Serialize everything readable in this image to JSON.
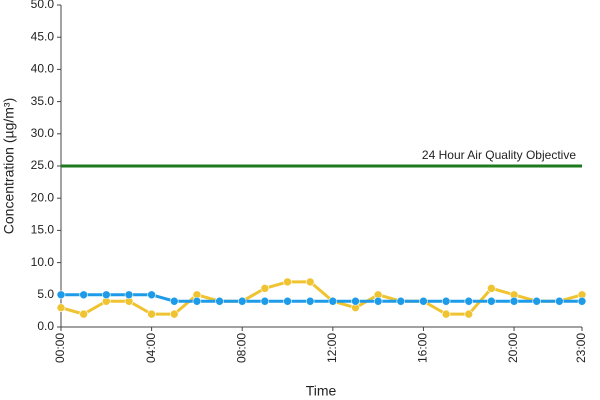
{
  "chart_data": {
    "type": "line",
    "x_label": "Time",
    "y_label": "Concentration (µg/m³)",
    "categories": [
      "00:00",
      null,
      null,
      null,
      "04:00",
      null,
      null,
      null,
      "08:00",
      null,
      null,
      null,
      "12:00",
      null,
      null,
      null,
      "16:00",
      null,
      null,
      null,
      "20:00",
      null,
      null,
      "23:00"
    ],
    "series": [
      {
        "color": "#f0c330",
        "values": [
          3,
          2,
          4,
          4,
          2,
          2,
          5,
          4,
          4,
          6,
          7,
          7,
          4,
          3,
          5,
          4,
          4,
          2,
          2,
          6,
          5,
          4,
          4,
          5
        ]
      },
      {
        "color": "#1e9be8",
        "values": [
          5,
          5,
          5,
          5,
          5,
          4,
          4,
          4,
          4,
          4,
          4,
          4,
          4,
          4,
          4,
          4,
          4,
          4,
          4,
          4,
          4,
          4,
          4,
          4
        ]
      }
    ],
    "reference_line": {
      "value": 25,
      "label": "24 Hour Air Quality Objective",
      "color": "#1e7a1e"
    },
    "ylim": [
      0,
      50
    ],
    "yticks": [
      {
        "value": 0,
        "label": "0.0"
      },
      {
        "value": 5,
        "label": "5.0"
      },
      {
        "value": 10,
        "label": "10.0"
      },
      {
        "value": 15,
        "label": "15.0"
      },
      {
        "value": 20,
        "label": "20.0"
      },
      {
        "value": 25,
        "label": "25.0"
      },
      {
        "value": 30,
        "label": "30.0"
      },
      {
        "value": 35,
        "label": "35.0"
      },
      {
        "value": 40,
        "label": "40.0"
      },
      {
        "value": 45,
        "label": "45.0"
      },
      {
        "value": 50,
        "label": "50.0"
      }
    ],
    "grid": false
  }
}
